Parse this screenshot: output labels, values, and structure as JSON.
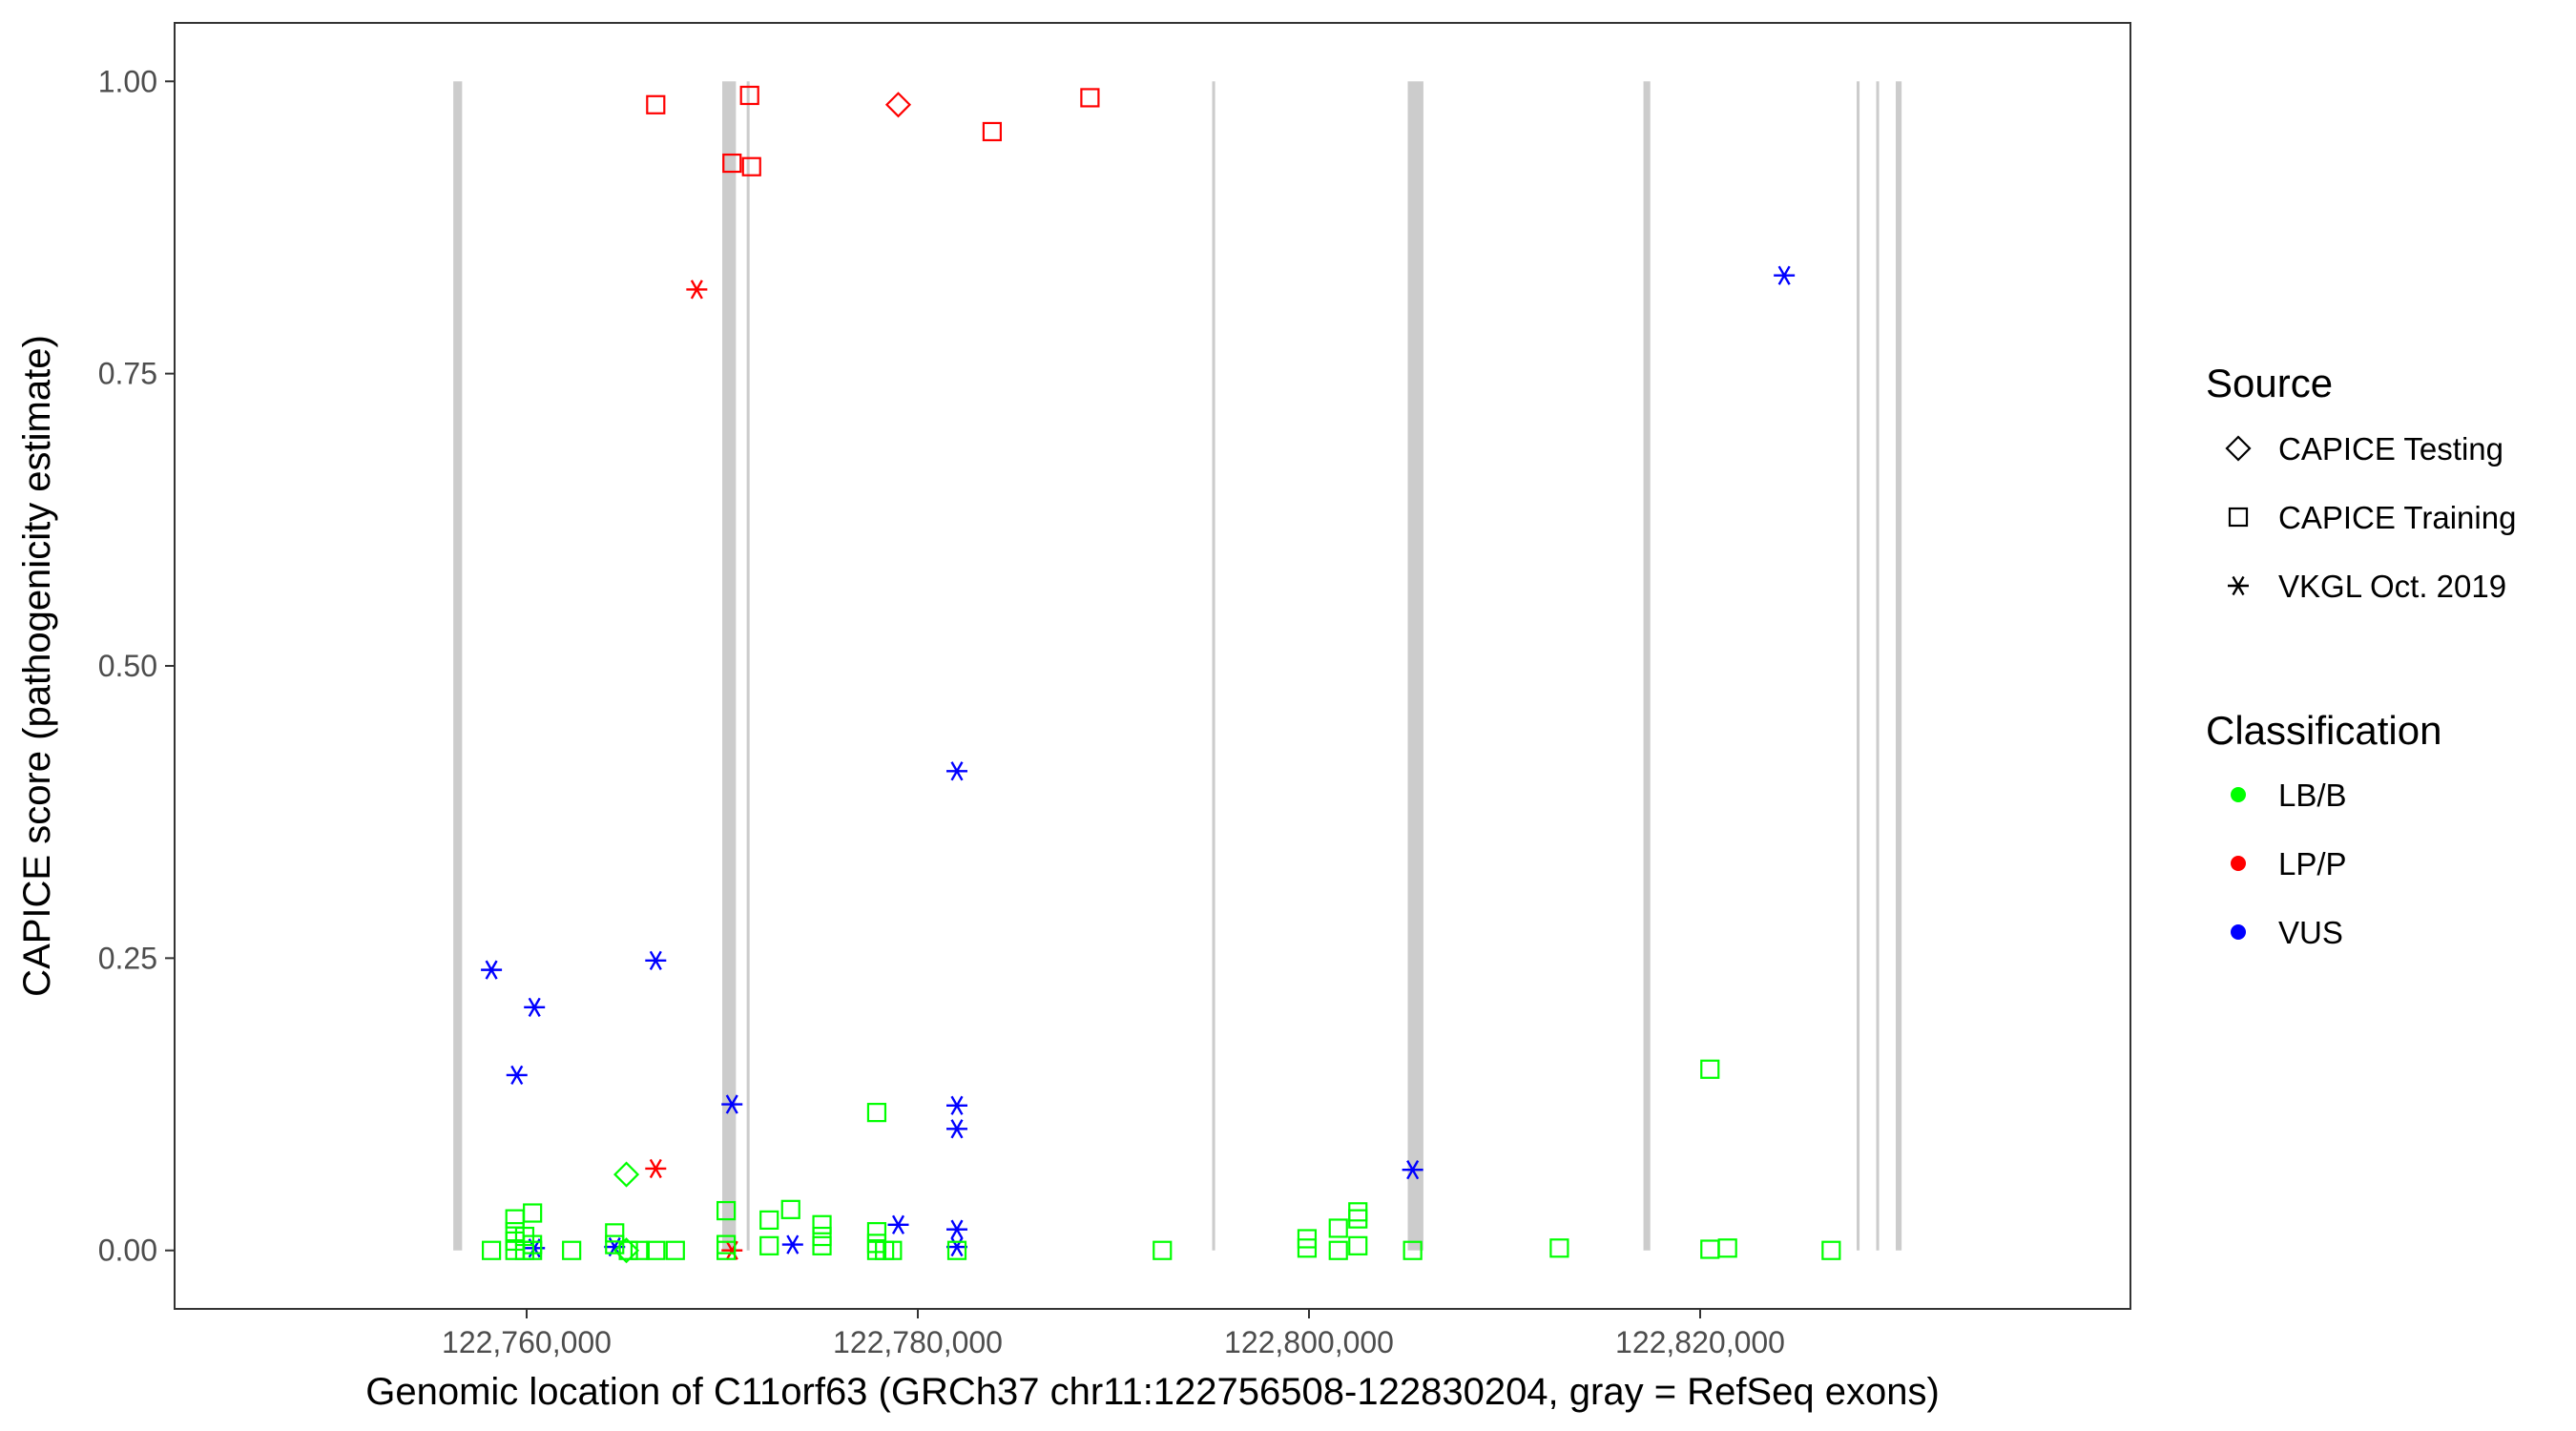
{
  "chart_data": {
    "type": "scatter",
    "xlabel": "Genomic location of C11orf63 (GRCh37 chr11:122756508-122830204, gray = RefSeq exons)",
    "ylabel": "CAPICE score (pathogenicity estimate)",
    "xlim": [
      122742000,
      122842000
    ],
    "ylim": [
      -0.05,
      1.05
    ],
    "x_ticks": [
      {
        "value": 122760000,
        "label": "122,760,000"
      },
      {
        "value": 122780000,
        "label": "122,780,000"
      },
      {
        "value": 122800000,
        "label": "122,800,000"
      },
      {
        "value": 122820000,
        "label": "122,820,000"
      }
    ],
    "y_ticks": [
      {
        "value": 0.0,
        "label": "0.00"
      },
      {
        "value": 0.25,
        "label": "0.25"
      },
      {
        "value": 0.5,
        "label": "0.50"
      },
      {
        "value": 0.75,
        "label": "0.75"
      },
      {
        "value": 1.0,
        "label": "1.00"
      }
    ],
    "exons": [
      [
        122756250,
        122756700
      ],
      [
        122770000,
        122770700
      ],
      [
        122771250,
        122771400
      ],
      [
        122795050,
        122795200
      ],
      [
        122805050,
        122805850
      ],
      [
        122817100,
        122817450
      ],
      [
        122828000,
        122828150
      ],
      [
        122829000,
        122829150
      ],
      [
        122830000,
        122830300
      ]
    ],
    "colors": {
      "LB/B": "#00ff00",
      "LP/P": "#ff0000",
      "VUS": "#0000ff",
      "exon": "#cccccc"
    },
    "legend": {
      "position": "right",
      "source_title": "Source",
      "source_items": [
        {
          "label": "CAPICE Testing",
          "shape": "diamond"
        },
        {
          "label": "CAPICE Training",
          "shape": "square"
        },
        {
          "label": "VKGL Oct. 2019",
          "shape": "asterisk"
        }
      ],
      "class_title": "Classification",
      "class_items": [
        {
          "label": "LB/B",
          "color": "#00ff00"
        },
        {
          "label": "LP/P",
          "color": "#ff0000"
        },
        {
          "label": "VUS",
          "color": "#0000ff"
        }
      ]
    },
    "series": [
      {
        "source": "CAPICE Training",
        "classification": "LP/P",
        "points": [
          [
            122766600,
            0.98
          ],
          [
            122771400,
            0.988
          ],
          [
            122770500,
            0.93
          ],
          [
            122771500,
            0.927
          ],
          [
            122783800,
            0.957
          ],
          [
            122788800,
            0.986
          ]
        ]
      },
      {
        "source": "CAPICE Testing",
        "classification": "LP/P",
        "points": [
          [
            122779000,
            0.98
          ]
        ]
      },
      {
        "source": "VKGL Oct. 2019",
        "classification": "LP/P",
        "points": [
          [
            122768700,
            0.822
          ],
          [
            122770500,
            0.0
          ],
          [
            122766600,
            0.07
          ]
        ]
      },
      {
        "source": "VKGL Oct. 2019",
        "classification": "VUS",
        "points": [
          [
            122758200,
            0.24
          ],
          [
            122760400,
            0.208
          ],
          [
            122759500,
            0.15
          ],
          [
            122766600,
            0.248
          ],
          [
            122770500,
            0.125
          ],
          [
            122782000,
            0.41
          ],
          [
            122782000,
            0.124
          ],
          [
            122782000,
            0.104
          ],
          [
            122779000,
            0.022
          ],
          [
            122782000,
            0.018
          ],
          [
            122782000,
            0.003
          ],
          [
            122760400,
            0.002
          ],
          [
            122764500,
            0.003
          ],
          [
            122773600,
            0.005
          ],
          [
            122805300,
            0.069
          ],
          [
            122824300,
            0.834
          ]
        ]
      },
      {
        "source": "CAPICE Testing",
        "classification": "LB/B",
        "points": [
          [
            122765100,
            0.065
          ],
          [
            122765100,
            0.0
          ]
        ]
      },
      {
        "source": "CAPICE Training",
        "classification": "LB/B",
        "points": [
          [
            122758200,
            0.0
          ],
          [
            122760300,
            0.032
          ],
          [
            122759400,
            0.027
          ],
          [
            122759400,
            0.016
          ],
          [
            122759400,
            0.008
          ],
          [
            122759400,
            0.0
          ],
          [
            122759900,
            0.0
          ],
          [
            122759900,
            0.012
          ],
          [
            122760300,
            0.005
          ],
          [
            122760300,
            0.0
          ],
          [
            122762300,
            0.0
          ],
          [
            122764500,
            0.015
          ],
          [
            122764500,
            0.005
          ],
          [
            122765200,
            0.0
          ],
          [
            122765800,
            0.0
          ],
          [
            122766600,
            0.0
          ],
          [
            122767600,
            0.0
          ],
          [
            122770200,
            0.034
          ],
          [
            122770200,
            0.005
          ],
          [
            122770200,
            0.0
          ],
          [
            122772400,
            0.026
          ],
          [
            122772400,
            0.004
          ],
          [
            122773500,
            0.035
          ],
          [
            122775100,
            0.022
          ],
          [
            122775100,
            0.012
          ],
          [
            122775100,
            0.004
          ],
          [
            122777900,
            0.118
          ],
          [
            122777900,
            0.016
          ],
          [
            122777900,
            0.006
          ],
          [
            122777900,
            0.0
          ],
          [
            122778300,
            0.0
          ],
          [
            122778700,
            0.0
          ],
          [
            122782000,
            0.0
          ],
          [
            122792500,
            0.0
          ],
          [
            122799900,
            0.01
          ],
          [
            122799900,
            0.002
          ],
          [
            122801500,
            0.019
          ],
          [
            122801500,
            0.0
          ],
          [
            122802500,
            0.033
          ],
          [
            122802500,
            0.027
          ],
          [
            122802500,
            0.004
          ],
          [
            122805300,
            0.0
          ],
          [
            122812800,
            0.002
          ],
          [
            122820500,
            0.155
          ],
          [
            122820500,
            0.001
          ],
          [
            122821400,
            0.002
          ],
          [
            122826700,
            0.0
          ]
        ]
      }
    ]
  }
}
